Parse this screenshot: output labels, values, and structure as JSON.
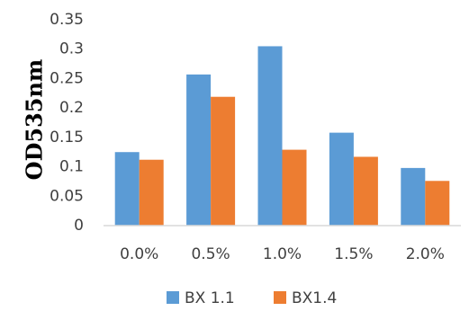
{
  "chart_data": {
    "type": "bar",
    "title": "",
    "xlabel": "",
    "ylabel": "OD535nm",
    "categories": [
      "0.0%",
      "0.5%",
      "1.0%",
      "1.5%",
      "2.0%"
    ],
    "series": [
      {
        "name": "BX 1.1",
        "color": "#5b9bd5",
        "values": [
          0.125,
          0.257,
          0.305,
          0.158,
          0.098
        ]
      },
      {
        "name": "BX1.4",
        "color": "#ed7d31",
        "values": [
          0.112,
          0.219,
          0.129,
          0.117,
          0.076
        ]
      }
    ],
    "ylim": [
      0,
      0.35
    ],
    "yticks": [
      "0",
      "0.05",
      "0.1",
      "0.15",
      "0.2",
      "0.25",
      "0.3",
      "0.35"
    ],
    "grid": false,
    "legend_position": "bottom"
  }
}
